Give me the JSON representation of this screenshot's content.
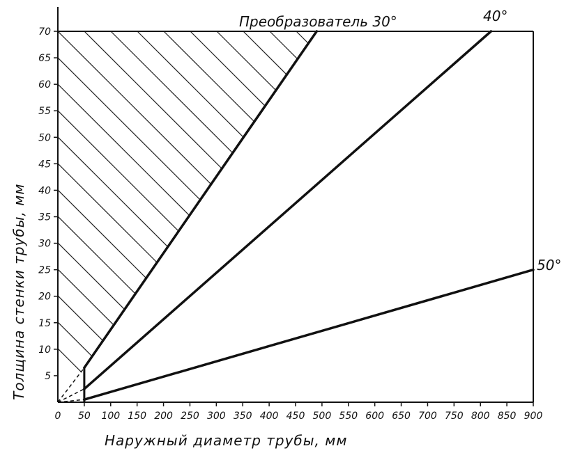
{
  "chart_data": {
    "type": "line",
    "title": "",
    "xlabel": "Наружный диаметр трубы, мм",
    "ylabel": "Толщина стенки трубы, мм",
    "xlim": [
      0,
      900
    ],
    "ylim": [
      0,
      70
    ],
    "x_ticks": [
      "0",
      "50",
      "100",
      "150",
      "200",
      "250",
      "300",
      "350",
      "400",
      "450",
      "500",
      "550",
      "600",
      "650",
      "700",
      "750",
      "800",
      "850",
      "900"
    ],
    "y_ticks": [
      "5",
      "10",
      "15",
      "20",
      "25",
      "30",
      "35",
      "40",
      "45",
      "50",
      "55",
      "60",
      "65",
      "70"
    ],
    "series": [
      {
        "name": "Преобразователь 30°",
        "x": [
          50,
          490
        ],
        "y": [
          6.5,
          70
        ]
      },
      {
        "name": "40°",
        "x": [
          50,
          820
        ],
        "y": [
          2.5,
          70
        ]
      },
      {
        "name": "50°",
        "x": [
          50,
          900
        ],
        "y": [
          0.5,
          25
        ]
      }
    ],
    "cutoff_line": {
      "x": [
        50,
        50
      ],
      "y": [
        0,
        6.5
      ]
    },
    "shaded_region": "hatched area left of the 30° line",
    "grid": false
  }
}
